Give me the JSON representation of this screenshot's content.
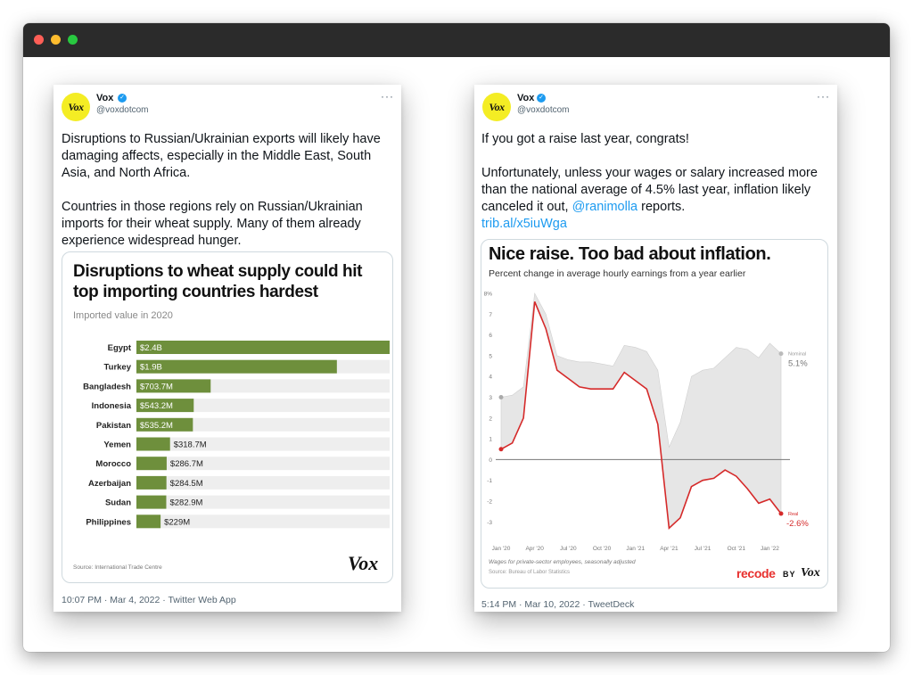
{
  "colors": {
    "bar_green": "#6e8f3c",
    "bar_track": "#eeeeee",
    "link": "#1d9bf0",
    "red_line": "#d52a2a",
    "vox_yellow": "#f4ed24"
  },
  "tweet1": {
    "name": "Vox",
    "handle": "@voxdotcom",
    "avatar_text": "Vox",
    "more": "···",
    "paragraphs": [
      "Disruptions to Russian/Ukrainian exports will likely have damaging affects, especially in the Middle East, South Asia, and North Africa.",
      "Countries in those regions rely on Russian/Ukrainian imports for their wheat supply. Many of them already experience widespread hunger."
    ],
    "chart_title": "Disruptions to wheat supply could hit top importing countries hardest",
    "chart_subtitle": "Imported value in 2020",
    "chart_source": "Source: International Trade Centre",
    "logo": "Vox",
    "footer": "10:07 PM · Mar 4, 2022 · Twitter Web App"
  },
  "tweet2": {
    "name": "Vox",
    "handle": "@voxdotcom",
    "avatar_text": "Vox",
    "more": "···",
    "line1": "If you got a raise last year, congrats!",
    "line2_pre": "Unfortunately, unless your wages or salary increased more than the national average of 4.5% last year, inflation likely canceled it out, ",
    "mention": "@ranimolla",
    "line2_post": " reports.",
    "url": "trib.al/x5iuWga",
    "chart_title": "Nice raise. Too bad about inflation.",
    "chart_subtitle": "Percent change in average hourly earnings from a year earlier",
    "chart_note": "Wages for private-sector employees, seasonally adjusted",
    "chart_source": "Source: Bureau of Labor Statistics",
    "brand_recode": "recode",
    "brand_by": "BY",
    "brand_vox": "Vox",
    "footer": "5:14 PM · Mar 10, 2022 · TweetDeck"
  },
  "chart_data": [
    {
      "type": "bar",
      "title": "Disruptions to wheat supply could hit top importing countries hardest",
      "subtitle": "Imported value in 2020",
      "categories": [
        "Egypt",
        "Turkey",
        "Bangladesh",
        "Indonesia",
        "Pakistan",
        "Yemen",
        "Morocco",
        "Azerbaijan",
        "Sudan",
        "Philippines"
      ],
      "values": [
        2.4,
        1.9,
        0.7037,
        0.5432,
        0.5352,
        0.3187,
        0.2867,
        0.2845,
        0.2829,
        0.229
      ],
      "value_labels": [
        "$2.4B",
        "$1.9B",
        "$703.7M",
        "$543.2M",
        "$535.2M",
        "$318.7M",
        "$286.7M",
        "$284.5M",
        "$282.9M",
        "$229M"
      ],
      "unit": "billion USD",
      "xlim": [
        0,
        2.4
      ]
    },
    {
      "type": "line",
      "title": "Nice raise. Too bad about inflation.",
      "subtitle": "Percent change in average hourly earnings from a year earlier",
      "x": [
        0,
        1,
        2,
        3,
        4,
        5,
        6,
        7,
        8,
        9,
        10,
        11,
        12,
        13,
        14,
        15,
        16,
        17,
        18,
        19,
        20,
        21,
        22,
        23,
        24,
        25
      ],
      "x_ticks": [
        "Jan '20",
        "Apr '20",
        "Jul '20",
        "Oct '20",
        "Jan '21",
        "Apr '21",
        "Jul '21",
        "Oct '21",
        "Jan '22"
      ],
      "y_ticks": [
        "8%",
        "7",
        "6",
        "5",
        "4",
        "3",
        "2",
        "1",
        "0",
        "-1",
        "-2",
        "-3"
      ],
      "ylim": [
        -3.5,
        8
      ],
      "series": [
        {
          "name": "Nominal",
          "values": [
            3.0,
            3.1,
            3.5,
            8.0,
            7.0,
            5.0,
            4.8,
            4.7,
            4.7,
            4.6,
            4.5,
            5.5,
            5.4,
            5.2,
            4.3,
            0.6,
            1.8,
            4.0,
            4.3,
            4.4,
            4.9,
            5.4,
            5.3,
            4.9,
            5.6,
            5.1
          ],
          "end_label": "5.1%"
        },
        {
          "name": "Real",
          "values": [
            0.5,
            0.8,
            2.0,
            7.6,
            6.3,
            4.3,
            3.9,
            3.5,
            3.4,
            3.4,
            3.4,
            4.2,
            3.8,
            3.4,
            1.7,
            -3.3,
            -2.8,
            -1.3,
            -1.0,
            -0.9,
            -0.5,
            -0.8,
            -1.4,
            -2.1,
            -1.9,
            -2.6
          ],
          "end_label": "-2.6%"
        }
      ]
    }
  ]
}
